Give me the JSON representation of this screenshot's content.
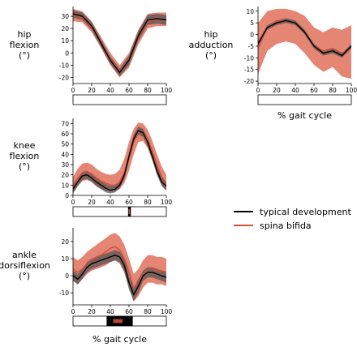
{
  "colors": {
    "typical_line": "#000000",
    "typical_band": "#555555",
    "spina_line": "#d0503c",
    "spina_band": "#e0705a",
    "sig_bar": "#000000",
    "sig_mark": "#d0503c"
  },
  "legend": {
    "typical": "typical development",
    "spina": "spina bifida",
    "placement": "right"
  },
  "chart_data": [
    {
      "id": "hip-flexion",
      "type": "line",
      "title": "hip\nflexion\n(°)",
      "xlabel": "",
      "xlim": [
        0,
        100
      ],
      "ylim": [
        -25,
        38
      ],
      "xticks": [
        0,
        20,
        40,
        60,
        80,
        100
      ],
      "yticks": [
        -20,
        -10,
        0,
        10,
        20,
        30
      ],
      "x": [
        0,
        10,
        20,
        30,
        40,
        50,
        60,
        70,
        80,
        90,
        100
      ],
      "series": [
        {
          "name": "typical development",
          "mean": [
            32,
            30,
            22,
            8,
            -6,
            -16,
            -6,
            14,
            27,
            28,
            27
          ],
          "lower": [
            29,
            27,
            19,
            5,
            -9,
            -19,
            -10,
            10,
            23,
            24,
            23
          ],
          "upper": [
            35,
            33,
            25,
            11,
            -3,
            -13,
            -2,
            18,
            31,
            32,
            31
          ]
        },
        {
          "name": "spina bifida",
          "mean": [
            31,
            29,
            21,
            8,
            -5,
            -15,
            -6,
            13,
            26,
            27,
            27
          ],
          "lower": [
            26,
            25,
            17,
            4,
            -10,
            -20,
            -12,
            7,
            20,
            22,
            22
          ],
          "upper": [
            36,
            34,
            26,
            13,
            0,
            -10,
            0,
            19,
            32,
            33,
            33
          ]
        }
      ],
      "significance": []
    },
    {
      "id": "hip-adduction",
      "type": "line",
      "title": "hip\nadduction\n(°)",
      "xlabel": "% gait cycle",
      "xlim": [
        0,
        100
      ],
      "ylim": [
        -21,
        12
      ],
      "xticks": [
        0,
        20,
        40,
        60,
        80,
        100
      ],
      "yticks": [
        -20,
        -15,
        -10,
        -5,
        0,
        5,
        10
      ],
      "x": [
        0,
        10,
        20,
        30,
        40,
        50,
        60,
        70,
        80,
        90,
        100
      ],
      "series": [
        {
          "name": "typical development",
          "mean": [
            -4,
            3,
            5,
            6,
            5,
            1,
            -5,
            -8,
            -7,
            -9,
            -5
          ],
          "lower": [
            -5,
            2,
            4,
            5,
            4,
            0,
            -6,
            -9,
            -8,
            -10,
            -6
          ],
          "upper": [
            -3,
            4,
            6,
            7,
            6,
            2,
            -4,
            -7,
            -6,
            -8,
            -4
          ]
        },
        {
          "name": "spina bifida",
          "mean": [
            -6,
            3,
            6,
            6,
            5,
            1,
            -5,
            -7,
            -6,
            -8,
            -6
          ],
          "lower": [
            -17,
            -7,
            -4,
            -3,
            -4,
            -8,
            -13,
            -16,
            -14,
            -18,
            -19
          ],
          "upper": [
            5,
            10,
            11,
            11,
            10,
            8,
            3,
            1,
            3,
            2,
            4
          ]
        }
      ],
      "significance": []
    },
    {
      "id": "knee-flexion",
      "type": "line",
      "title": "knee\nflexion\n(°)",
      "xlabel": "",
      "xlim": [
        0,
        100
      ],
      "ylim": [
        0,
        75
      ],
      "xticks": [
        0,
        20,
        40,
        60,
        80,
        100
      ],
      "yticks": [
        0,
        10,
        20,
        30,
        40,
        50,
        60,
        70
      ],
      "x": [
        0,
        5,
        10,
        15,
        20,
        25,
        30,
        35,
        40,
        45,
        50,
        55,
        60,
        65,
        70,
        75,
        80,
        85,
        90,
        95,
        100
      ],
      "series": [
        {
          "name": "typical development",
          "mean": [
            6,
            13,
            19,
            20,
            17,
            13,
            10,
            7,
            5,
            6,
            10,
            20,
            38,
            55,
            63,
            61,
            52,
            38,
            24,
            13,
            9
          ],
          "lower": [
            2,
            9,
            15,
            16,
            13,
            9,
            6,
            3,
            2,
            3,
            7,
            16,
            34,
            51,
            59,
            57,
            48,
            34,
            20,
            9,
            5
          ],
          "upper": [
            10,
            17,
            23,
            24,
            21,
            17,
            14,
            11,
            9,
            10,
            14,
            24,
            42,
            59,
            67,
            65,
            56,
            42,
            28,
            17,
            13
          ]
        },
        {
          "name": "spina bifida",
          "mean": [
            10,
            17,
            22,
            23,
            21,
            17,
            14,
            12,
            10,
            10,
            13,
            22,
            36,
            52,
            62,
            62,
            55,
            43,
            30,
            18,
            12
          ],
          "lower": [
            2,
            9,
            14,
            15,
            13,
            9,
            6,
            5,
            4,
            4,
            6,
            12,
            24,
            40,
            52,
            53,
            46,
            34,
            21,
            10,
            4
          ],
          "upper": [
            18,
            26,
            31,
            32,
            30,
            26,
            23,
            21,
            20,
            21,
            25,
            36,
            52,
            65,
            71,
            70,
            64,
            53,
            40,
            28,
            20
          ]
        }
      ],
      "significance": [
        {
          "x0": 59,
          "x1": 62,
          "type": "typical"
        }
      ]
    },
    {
      "id": "ankle-dorsiflexion",
      "type": "line",
      "title": "ankle\ndorsiflexion\n(°)",
      "xlabel": "% gait cycle",
      "xlim": [
        0,
        100
      ],
      "ylim": [
        -17,
        28
      ],
      "xticks": [
        0,
        20,
        40,
        60,
        80,
        100
      ],
      "yticks": [
        -10,
        0,
        10,
        20
      ],
      "x": [
        0,
        5,
        10,
        15,
        20,
        25,
        30,
        35,
        40,
        45,
        50,
        55,
        60,
        65,
        70,
        75,
        80,
        85,
        90,
        95,
        100
      ],
      "series": [
        {
          "name": "typical development",
          "mean": [
            0,
            -2,
            1,
            5,
            7,
            8,
            9,
            10,
            11,
            12,
            11,
            6,
            -4,
            -11,
            -6,
            0,
            2,
            2,
            1,
            0,
            -1
          ],
          "lower": [
            -3,
            -5,
            -2,
            2,
            4,
            5,
            6,
            7,
            8,
            9,
            8,
            2,
            -8,
            -15,
            -10,
            -3,
            -1,
            -1,
            -2,
            -3,
            -4
          ],
          "upper": [
            3,
            1,
            4,
            8,
            10,
            11,
            12,
            13,
            14,
            15,
            14,
            10,
            0,
            -7,
            -2,
            3,
            5,
            5,
            4,
            3,
            2
          ]
        },
        {
          "name": "spina bifida",
          "mean": [
            4,
            2,
            4,
            7,
            9,
            11,
            12,
            14,
            16,
            17,
            15,
            10,
            2,
            -7,
            -4,
            1,
            4,
            4,
            3,
            3,
            2
          ],
          "lower": [
            -3,
            -5,
            -2,
            1,
            3,
            4,
            5,
            6,
            8,
            9,
            7,
            2,
            -6,
            -15,
            -12,
            -7,
            -4,
            -4,
            -5,
            -5,
            -6
          ],
          "upper": [
            11,
            9,
            11,
            14,
            16,
            18,
            20,
            22,
            24,
            25,
            23,
            18,
            10,
            1,
            4,
            9,
            12,
            12,
            11,
            11,
            10
          ]
        }
      ],
      "significance": [
        {
          "x0": 36,
          "x1": 64,
          "type": "typical"
        },
        {
          "x0": 43,
          "x1": 53,
          "type": "spina"
        }
      ]
    }
  ]
}
